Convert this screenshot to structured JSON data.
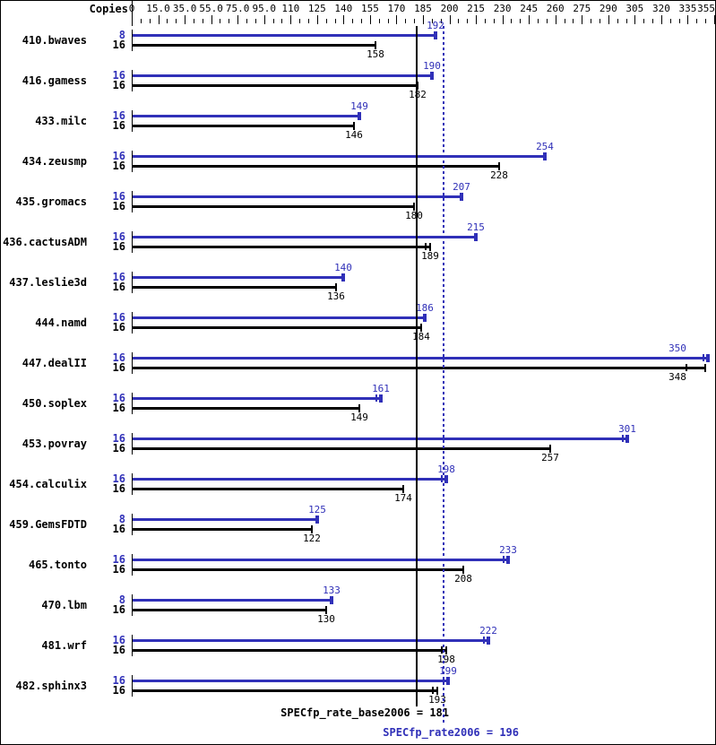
{
  "header": {
    "copies_label": "Copies"
  },
  "colors": {
    "peak_blue": "#3030b8",
    "base_black": "#000000"
  },
  "axis": {
    "ticks": [
      {
        "label": "0",
        "value": 0
      },
      {
        "label": "15.0",
        "value": 15
      },
      {
        "label": "35.0",
        "value": 35
      },
      {
        "label": "55.0",
        "value": 55
      },
      {
        "label": "75.0",
        "value": 75
      },
      {
        "label": "95.0",
        "value": 95
      },
      {
        "label": "110",
        "value": 110
      },
      {
        "label": "125",
        "value": 125
      },
      {
        "label": "140",
        "value": 140
      },
      {
        "label": "155",
        "value": 155
      },
      {
        "label": "170",
        "value": 170
      },
      {
        "label": "185",
        "value": 185
      },
      {
        "label": "200",
        "value": 200
      },
      {
        "label": "215",
        "value": 215
      },
      {
        "label": "230",
        "value": 230
      },
      {
        "label": "245",
        "value": 245
      },
      {
        "label": "260",
        "value": 260
      },
      {
        "label": "275",
        "value": 275
      },
      {
        "label": "290",
        "value": 290
      },
      {
        "label": "305",
        "value": 305
      },
      {
        "label": "320",
        "value": 320
      },
      {
        "label": "335",
        "value": 335
      },
      {
        "label": "355",
        "value": 355
      }
    ]
  },
  "chart_data": {
    "type": "bar",
    "orientation": "horizontal",
    "title": "",
    "xlabel": "",
    "ylabel": "Copies",
    "xlim": [
      0,
      355
    ],
    "series_meaning": "peak = SPECfp_rate2006 run (blue), base = SPECfp_rate_base2006 run (black)",
    "benchmarks": [
      {
        "name": "410.bwaves",
        "peak": {
          "copies": 8,
          "value": 192
        },
        "base": {
          "copies": 16,
          "value": 158
        }
      },
      {
        "name": "416.gamess",
        "peak": {
          "copies": 16,
          "value": 190
        },
        "base": {
          "copies": 16,
          "value": 182
        }
      },
      {
        "name": "433.milc",
        "peak": {
          "copies": 16,
          "value": 149
        },
        "base": {
          "copies": 16,
          "value": 146
        }
      },
      {
        "name": "434.zeusmp",
        "peak": {
          "copies": 16,
          "value": 254
        },
        "base": {
          "copies": 16,
          "value": 228
        }
      },
      {
        "name": "435.gromacs",
        "peak": {
          "copies": 16,
          "value": 207
        },
        "base": {
          "copies": 16,
          "value": 180
        }
      },
      {
        "name": "436.cactusADM",
        "peak": {
          "copies": 16,
          "value": 215
        },
        "base": {
          "copies": 16,
          "value": 189,
          "double_mark": true
        }
      },
      {
        "name": "437.leslie3d",
        "peak": {
          "copies": 16,
          "value": 140
        },
        "base": {
          "copies": 16,
          "value": 136
        }
      },
      {
        "name": "444.namd",
        "peak": {
          "copies": 16,
          "value": 186
        },
        "base": {
          "copies": 16,
          "value": 184
        }
      },
      {
        "name": "447.dealII",
        "peak": {
          "copies": 16,
          "value": 350,
          "double_mark": true
        },
        "base": {
          "copies": 16,
          "value": 348,
          "extra_ticks": [
            334
          ]
        }
      },
      {
        "name": "450.soplex",
        "peak": {
          "copies": 16,
          "value": 161,
          "double_mark": true
        },
        "base": {
          "copies": 16,
          "value": 149
        }
      },
      {
        "name": "453.povray",
        "peak": {
          "copies": 16,
          "value": 301,
          "double_mark": true
        },
        "base": {
          "copies": 16,
          "value": 257
        }
      },
      {
        "name": "454.calculix",
        "peak": {
          "copies": 16,
          "value": 198,
          "double_mark": true
        },
        "base": {
          "copies": 16,
          "value": 174
        }
      },
      {
        "name": "459.GemsFDTD",
        "peak": {
          "copies": 8,
          "value": 125
        },
        "base": {
          "copies": 16,
          "value": 122
        }
      },
      {
        "name": "465.tonto",
        "peak": {
          "copies": 16,
          "value": 233,
          "double_mark": true
        },
        "base": {
          "copies": 16,
          "value": 208
        }
      },
      {
        "name": "470.lbm",
        "peak": {
          "copies": 8,
          "value": 133
        },
        "base": {
          "copies": 16,
          "value": 130
        }
      },
      {
        "name": "481.wrf",
        "peak": {
          "copies": 16,
          "value": 222,
          "double_mark": true
        },
        "base": {
          "copies": 16,
          "value": 198,
          "double_mark": true
        }
      },
      {
        "name": "482.sphinx3",
        "peak": {
          "copies": 16,
          "value": 199,
          "double_mark": true
        },
        "base": {
          "copies": 16,
          "value": 193,
          "double_mark": true
        }
      }
    ]
  },
  "footer": {
    "base_line": {
      "label": "SPECfp_rate_base2006 = 181",
      "value": 181
    },
    "peak_line": {
      "label": "SPECfp_rate2006 = 196",
      "value": 196
    }
  }
}
